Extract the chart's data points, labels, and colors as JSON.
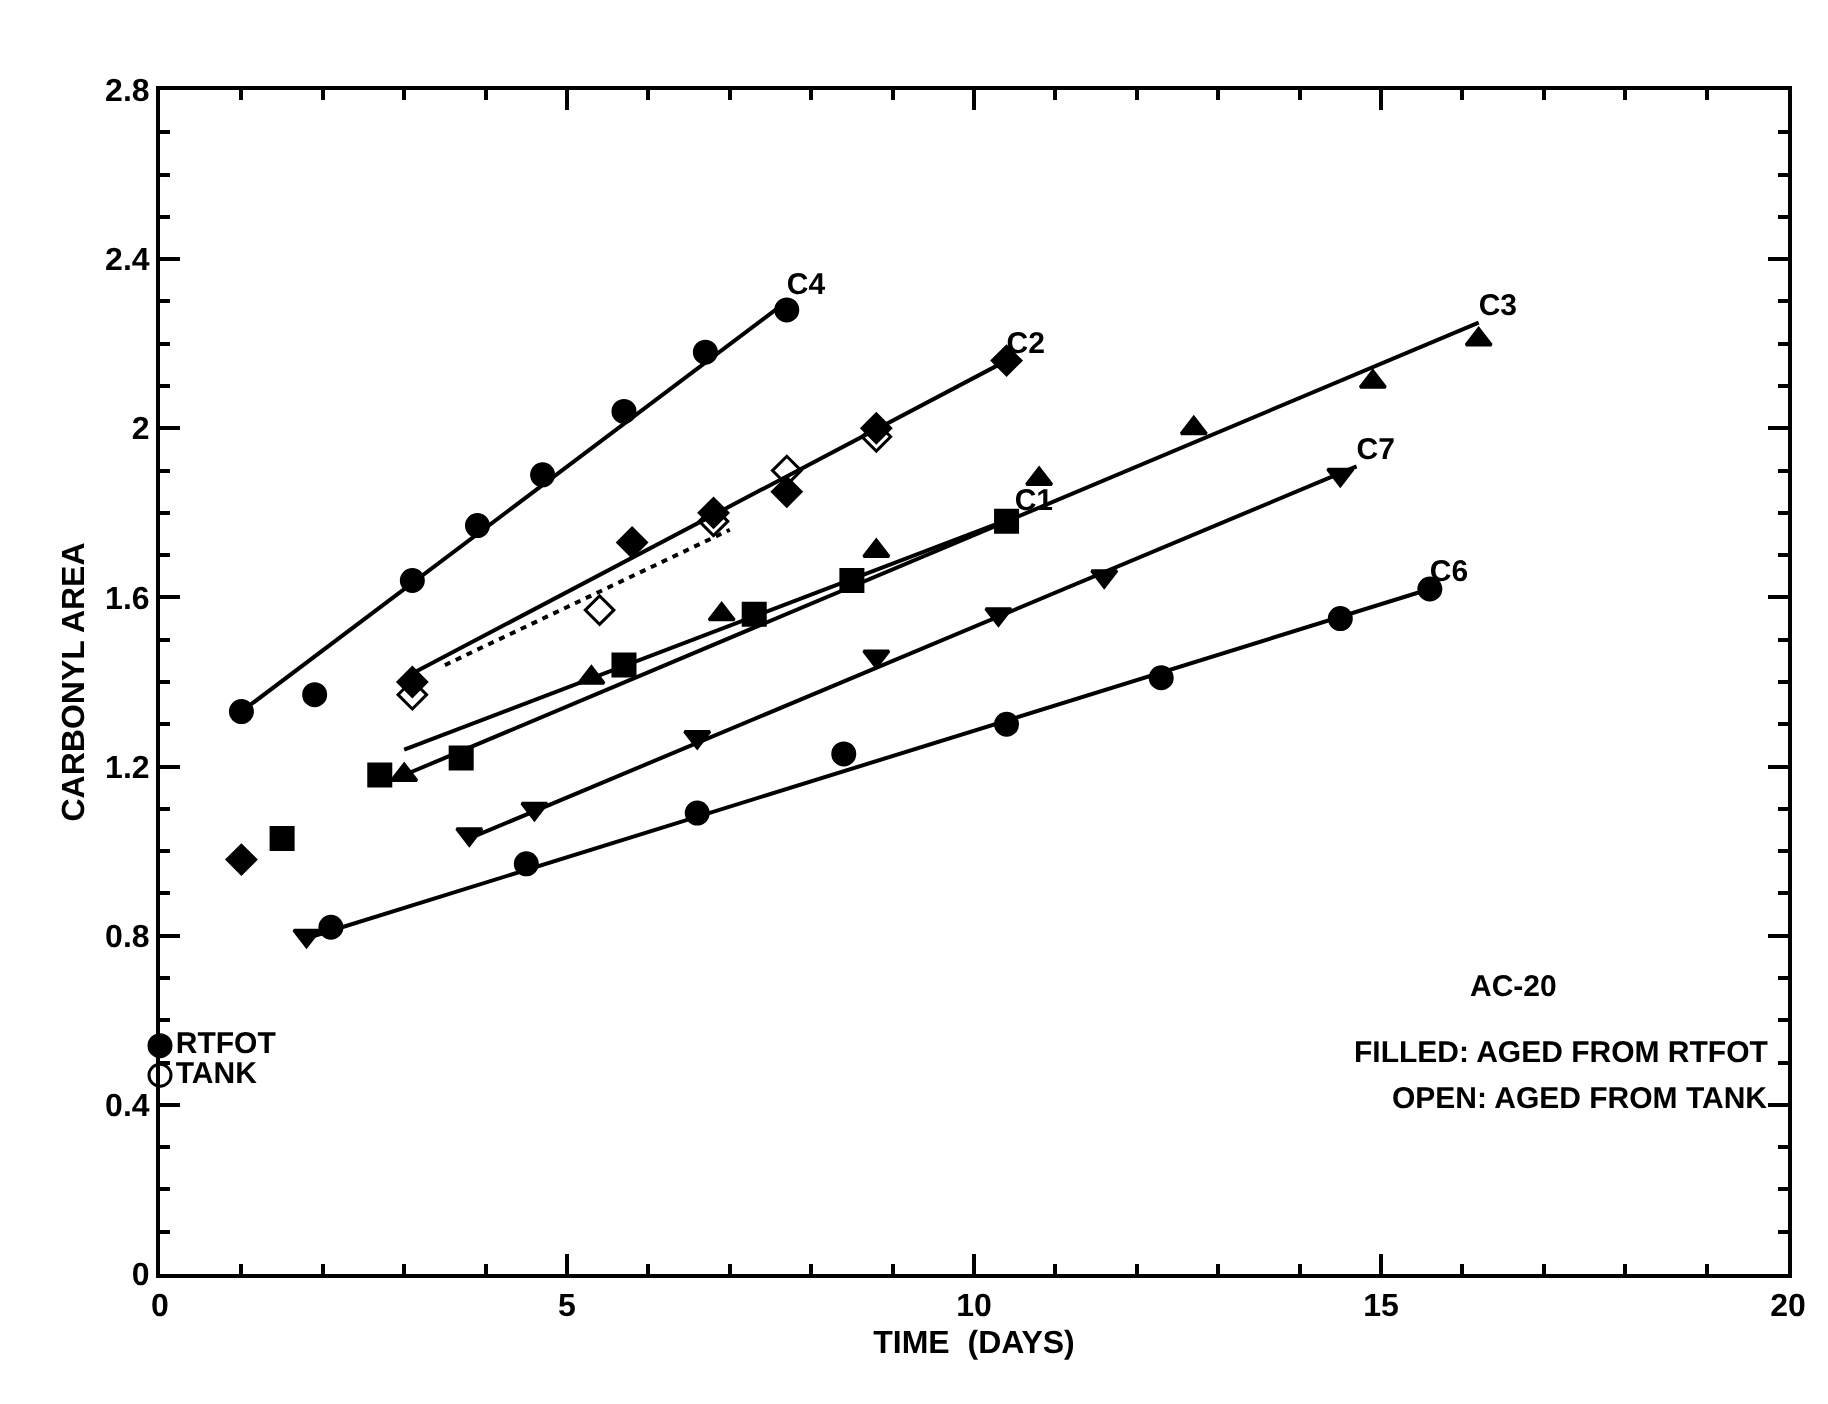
{
  "chart_data": {
    "type": "scatter",
    "xlabel": "TIME  (DAYS)",
    "ylabel": "CARBONYL AREA",
    "xlim": [
      0,
      20
    ],
    "xticks": [
      0,
      5,
      10,
      15,
      20
    ],
    "ylim": [
      0,
      2.8
    ],
    "yticks": [
      0,
      0.4,
      0.8,
      1.2,
      1.6,
      2,
      2.4,
      2.8
    ],
    "annotations": [
      "AC-20",
      "FILLED: AGED FROM RTFOT",
      "OPEN: AGED FROM TANK"
    ],
    "series": [
      {
        "marker": "circle",
        "color": "#000000",
        "x": [
          1,
          1.9,
          3.1,
          3.9,
          4.7,
          5.7,
          6.7,
          7.7
        ],
        "values": [
          1.33,
          1.37,
          1.64,
          1.77,
          1.89,
          2.04,
          2.18,
          2.28
        ]
      },
      {
        "type": "line",
        "name": "C4",
        "marker": "none",
        "line_style": "solid",
        "color": "#000000",
        "x": [
          1,
          7.7
        ],
        "values": [
          1.33,
          2.3
        ]
      },
      {
        "marker": "diamond",
        "color": "#000000",
        "x": [
          1,
          3.1,
          5.8,
          6.8,
          7.7,
          8.8,
          10.4
        ],
        "values": [
          0.98,
          1.4,
          1.73,
          1.8,
          1.85,
          2.0,
          2.16
        ]
      },
      {
        "marker": "diamond-open",
        "color": "#000000",
        "x": [
          3.1,
          5.4,
          6.8,
          7.7,
          8.8
        ],
        "values": [
          1.37,
          1.57,
          1.78,
          1.9,
          1.98
        ]
      },
      {
        "type": "line",
        "name": "C2",
        "marker": "none",
        "line_style": "solid",
        "color": "#000000",
        "x": [
          3,
          10.4
        ],
        "values": [
          1.41,
          2.16
        ]
      },
      {
        "type": "line",
        "marker": "none",
        "line_style": "dotted",
        "color": "#000000",
        "x": [
          3.5,
          7
        ],
        "values": [
          1.44,
          1.76
        ]
      },
      {
        "marker": "triangle",
        "color": "#000000",
        "x": [
          3,
          5.3,
          6.9,
          8.8,
          10.8,
          12.7,
          14.9,
          16.2
        ],
        "values": [
          1.18,
          1.41,
          1.56,
          1.71,
          1.88,
          2.0,
          2.11,
          2.21
        ]
      },
      {
        "type": "line",
        "name": "C3",
        "marker": "none",
        "line_style": "solid",
        "color": "#000000",
        "x": [
          3,
          16.2
        ],
        "values": [
          1.18,
          2.25
        ]
      },
      {
        "marker": "square",
        "color": "#000000",
        "x": [
          1.5,
          2.7,
          3.7,
          5.7,
          7.3,
          8.5,
          10.4
        ],
        "values": [
          1.03,
          1.18,
          1.22,
          1.44,
          1.56,
          1.64,
          1.78
        ]
      },
      {
        "type": "line",
        "name": "C1",
        "marker": "none",
        "line_style": "solid",
        "color": "#000000",
        "x": [
          3,
          10.5
        ],
        "values": [
          1.24,
          1.79
        ]
      },
      {
        "marker": "triangle-down",
        "color": "#000000",
        "x": [
          1.8,
          3.8,
          4.6,
          6.6,
          8.8,
          10.3,
          11.6,
          14.5
        ],
        "values": [
          0.8,
          1.04,
          1.1,
          1.27,
          1.46,
          1.56,
          1.65,
          1.89
        ]
      },
      {
        "type": "line",
        "name": "C7",
        "marker": "none",
        "line_style": "solid",
        "color": "#000000",
        "x": [
          3.8,
          14.7
        ],
        "values": [
          1.03,
          1.91
        ]
      },
      {
        "marker": "circle",
        "color": "#000000",
        "x": [
          2.1,
          4.5,
          6.6,
          8.4,
          10.4,
          12.3,
          14.5,
          15.6
        ],
        "values": [
          0.82,
          0.97,
          1.09,
          1.23,
          1.3,
          1.41,
          1.55,
          1.62
        ]
      },
      {
        "type": "line",
        "name": "C6",
        "marker": "none",
        "line_style": "solid",
        "color": "#000000",
        "x": [
          1.9,
          15.6
        ],
        "values": [
          0.8,
          1.62
        ]
      },
      {
        "name": "RTFOT",
        "marker": "circle",
        "color": "#000000",
        "x": [
          0
        ],
        "values": [
          0.54
        ]
      },
      {
        "name": "TANK",
        "marker": "circle-open",
        "color": "#000000",
        "x": [
          0
        ],
        "values": [
          0.47
        ]
      }
    ]
  }
}
